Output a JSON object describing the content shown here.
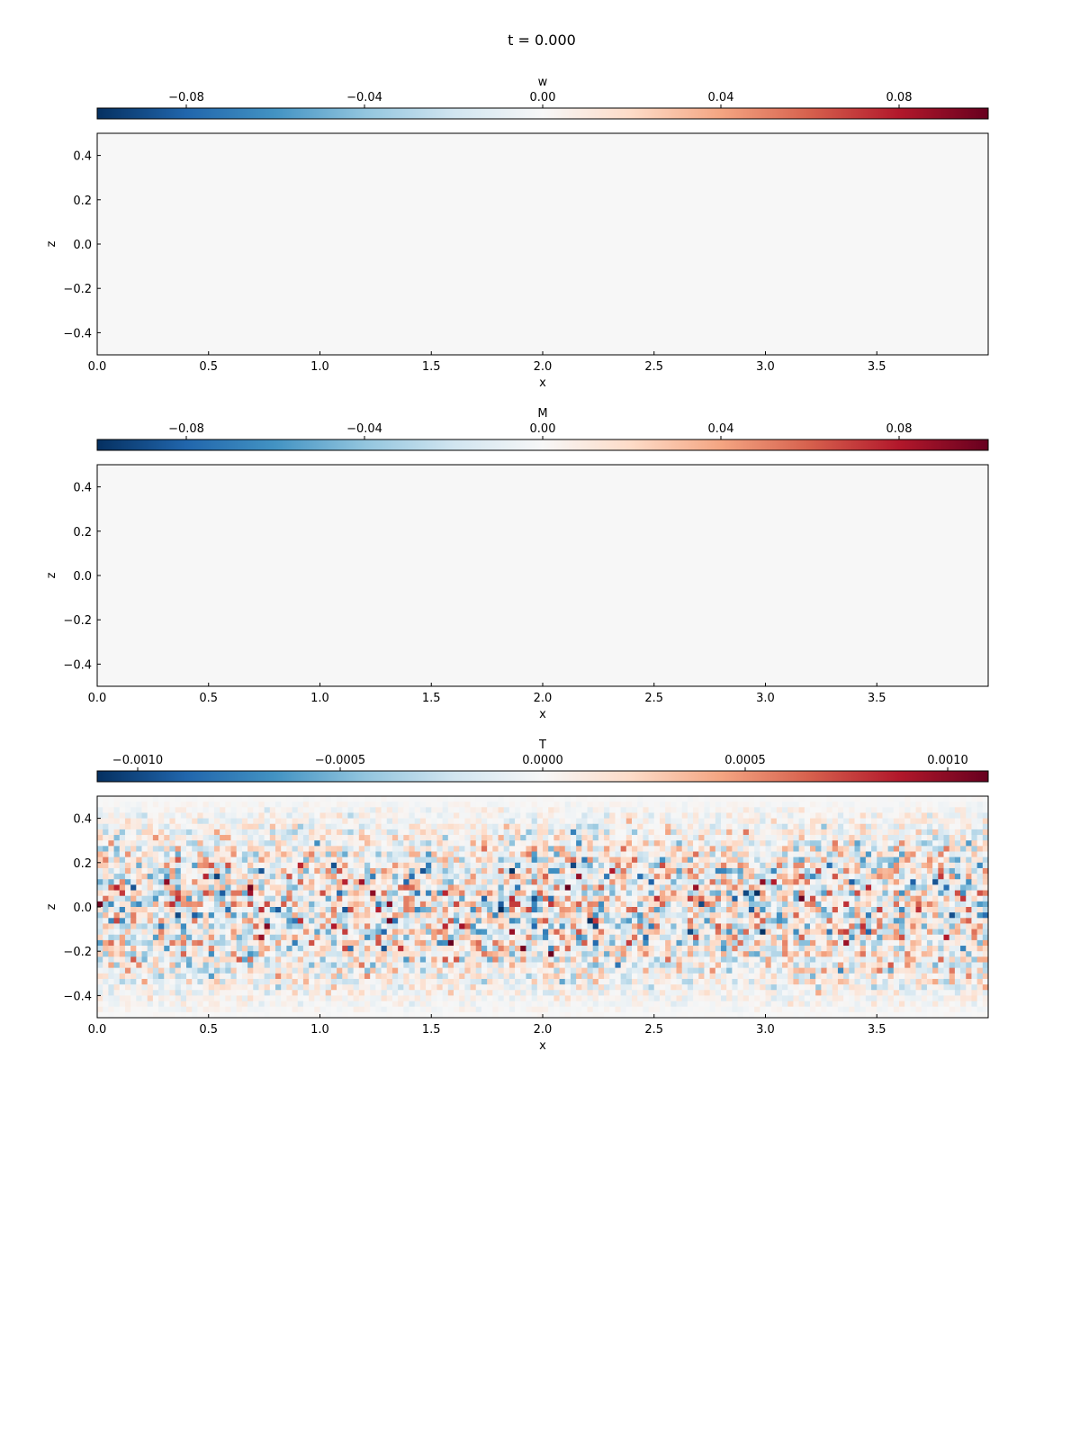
{
  "figure": {
    "title": "t = 0.000"
  },
  "colormap": {
    "name": "RdBu_r",
    "stops": [
      "#053061",
      "#2166ac",
      "#4393c3",
      "#92c5de",
      "#d1e5f0",
      "#f7f7f7",
      "#fddbc7",
      "#f4a582",
      "#d6604d",
      "#b2182b",
      "#67001f"
    ]
  },
  "chart_data": [
    {
      "type": "heatmap",
      "field": "w",
      "colorbar_label": "w",
      "xlabel": "x",
      "ylabel": "z",
      "xlim": [
        0.0,
        4.0
      ],
      "ylim": [
        -0.5,
        0.5
      ],
      "x_ticks": [
        {
          "value": 0.0,
          "label": "0.0"
        },
        {
          "value": 0.5,
          "label": "0.5"
        },
        {
          "value": 1.0,
          "label": "1.0"
        },
        {
          "value": 1.5,
          "label": "1.5"
        },
        {
          "value": 2.0,
          "label": "2.0"
        },
        {
          "value": 2.5,
          "label": "2.5"
        },
        {
          "value": 3.0,
          "label": "3.0"
        },
        {
          "value": 3.5,
          "label": "3.5"
        }
      ],
      "y_ticks": [
        {
          "value": 0.4,
          "label": "0.4"
        },
        {
          "value": 0.2,
          "label": "0.2"
        },
        {
          "value": 0.0,
          "label": "0.0"
        },
        {
          "value": -0.2,
          "label": "−0.2"
        },
        {
          "value": -0.4,
          "label": "−0.4"
        }
      ],
      "clim": [
        -0.1,
        0.1
      ],
      "colorbar_ticks": [
        {
          "value": -0.08,
          "label": "−0.08"
        },
        {
          "value": -0.04,
          "label": "−0.04"
        },
        {
          "value": 0.0,
          "label": "0.00"
        },
        {
          "value": 0.04,
          "label": "0.04"
        },
        {
          "value": 0.08,
          "label": "0.08"
        }
      ],
      "field_description": "uniform zero",
      "noise_amplitude": 0.0,
      "grid": false
    },
    {
      "type": "heatmap",
      "field": "M",
      "colorbar_label": "M",
      "xlabel": "x",
      "ylabel": "z",
      "xlim": [
        0.0,
        4.0
      ],
      "ylim": [
        -0.5,
        0.5
      ],
      "x_ticks": [
        {
          "value": 0.0,
          "label": "0.0"
        },
        {
          "value": 0.5,
          "label": "0.5"
        },
        {
          "value": 1.0,
          "label": "1.0"
        },
        {
          "value": 1.5,
          "label": "1.5"
        },
        {
          "value": 2.0,
          "label": "2.0"
        },
        {
          "value": 2.5,
          "label": "2.5"
        },
        {
          "value": 3.0,
          "label": "3.0"
        },
        {
          "value": 3.5,
          "label": "3.5"
        }
      ],
      "y_ticks": [
        {
          "value": 0.4,
          "label": "0.4"
        },
        {
          "value": 0.2,
          "label": "0.2"
        },
        {
          "value": 0.0,
          "label": "0.0"
        },
        {
          "value": -0.2,
          "label": "−0.2"
        },
        {
          "value": -0.4,
          "label": "−0.4"
        }
      ],
      "clim": [
        -0.1,
        0.1
      ],
      "colorbar_ticks": [
        {
          "value": -0.08,
          "label": "−0.08"
        },
        {
          "value": -0.04,
          "label": "−0.04"
        },
        {
          "value": 0.0,
          "label": "0.00"
        },
        {
          "value": 0.04,
          "label": "0.04"
        },
        {
          "value": 0.08,
          "label": "0.08"
        }
      ],
      "field_description": "uniform zero",
      "noise_amplitude": 0.0,
      "grid": false
    },
    {
      "type": "heatmap",
      "field": "T",
      "colorbar_label": "T",
      "xlabel": "x",
      "ylabel": "z",
      "xlim": [
        0.0,
        4.0
      ],
      "ylim": [
        -0.5,
        0.5
      ],
      "x_ticks": [
        {
          "value": 0.0,
          "label": "0.0"
        },
        {
          "value": 0.5,
          "label": "0.5"
        },
        {
          "value": 1.0,
          "label": "1.0"
        },
        {
          "value": 1.5,
          "label": "1.5"
        },
        {
          "value": 2.0,
          "label": "2.0"
        },
        {
          "value": 2.5,
          "label": "2.5"
        },
        {
          "value": 3.0,
          "label": "3.0"
        },
        {
          "value": 3.5,
          "label": "3.5"
        }
      ],
      "y_ticks": [
        {
          "value": 0.4,
          "label": "0.4"
        },
        {
          "value": 0.2,
          "label": "0.2"
        },
        {
          "value": 0.0,
          "label": "0.0"
        },
        {
          "value": -0.2,
          "label": "−0.2"
        },
        {
          "value": -0.4,
          "label": "−0.4"
        }
      ],
      "clim": [
        -0.0011,
        0.0011
      ],
      "colorbar_ticks": [
        {
          "value": -0.001,
          "label": "−0.0010"
        },
        {
          "value": -0.0005,
          "label": "−0.0005"
        },
        {
          "value": 0.0,
          "label": "0.0000"
        },
        {
          "value": 0.0005,
          "label": "0.0005"
        },
        {
          "value": 0.001,
          "label": "0.0010"
        }
      ],
      "field_description": "random noise, amplitude largest at mid-depth and decaying to zero at z = ±0.5",
      "noise_amplitude": 0.0011,
      "grid": false
    }
  ]
}
